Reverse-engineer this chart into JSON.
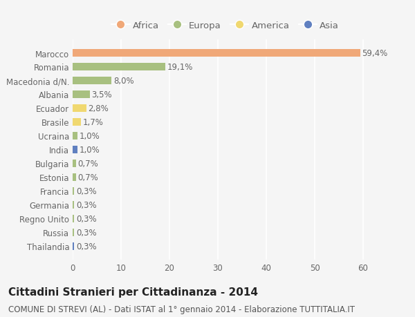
{
  "countries": [
    "Marocco",
    "Romania",
    "Macedonia d/N.",
    "Albania",
    "Ecuador",
    "Brasile",
    "Ucraina",
    "India",
    "Bulgaria",
    "Estonia",
    "Francia",
    "Germania",
    "Regno Unito",
    "Russia",
    "Thailandia"
  ],
  "values": [
    59.4,
    19.1,
    8.0,
    3.5,
    2.8,
    1.7,
    1.0,
    1.0,
    0.7,
    0.7,
    0.3,
    0.3,
    0.3,
    0.3,
    0.3
  ],
  "labels": [
    "59,4%",
    "19,1%",
    "8,0%",
    "3,5%",
    "2,8%",
    "1,7%",
    "1,0%",
    "1,0%",
    "0,7%",
    "0,7%",
    "0,3%",
    "0,3%",
    "0,3%",
    "0,3%",
    "0,3%"
  ],
  "continents": [
    "Africa",
    "Europa",
    "Europa",
    "Europa",
    "America",
    "America",
    "Europa",
    "Asia",
    "Europa",
    "Europa",
    "Europa",
    "Europa",
    "Europa",
    "Europa",
    "Asia"
  ],
  "colors": {
    "Africa": "#F0A878",
    "Europa": "#A8C080",
    "America": "#F0D870",
    "Asia": "#6080C0"
  },
  "legend_order": [
    "Africa",
    "Europa",
    "America",
    "Asia"
  ],
  "title": "Cittadini Stranieri per Cittadinanza - 2014",
  "subtitle": "COMUNE DI STREVI (AL) - Dati ISTAT al 1° gennaio 2014 - Elaborazione TUTTITALIA.IT",
  "xlim": [
    0,
    63
  ],
  "xticks": [
    0,
    10,
    20,
    30,
    40,
    50,
    60
  ],
  "background_color": "#f5f5f5",
  "bar_height": 0.55,
  "title_fontsize": 11,
  "subtitle_fontsize": 8.5,
  "tick_fontsize": 8.5,
  "label_fontsize": 8.5,
  "legend_fontsize": 9.5
}
